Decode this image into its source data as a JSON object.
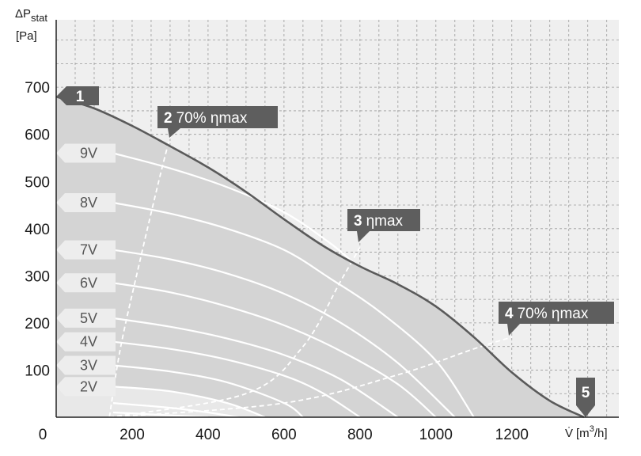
{
  "chart_data": {
    "type": "line",
    "title": "",
    "ylabel_main": "ΔP",
    "ylabel_sub": "stat",
    "ylabel_unit": "[Pa]",
    "xlabel_symbol": "V̇",
    "xlabel_unit_pre": "[m",
    "xlabel_unit_sup": "3",
    "xlabel_unit_post": "/h]",
    "xlim": [
      0,
      1400
    ],
    "ylim": [
      0,
      750
    ],
    "x_ticks": [
      "0",
      "200",
      "400",
      "600",
      "800",
      "1000",
      "1200"
    ],
    "x_tick_values": [
      0,
      200,
      400,
      600,
      800,
      1000,
      1200
    ],
    "y_ticks": [
      "100",
      "200",
      "300",
      "400",
      "500",
      "600",
      "700"
    ],
    "y_tick_values": [
      100,
      200,
      300,
      400,
      500,
      600,
      700
    ],
    "grid": true,
    "colors": {
      "region": "#d4d4d4",
      "region_light": "#e8e8e8",
      "background": "#efefef",
      "max_curve": "#5a5a5a",
      "label_box": "#5e5e5e",
      "voltage_curve": "#ffffff",
      "voltage_tag": "#ededed",
      "voltage_text": "#555555"
    },
    "max_curve": {
      "x": [
        0,
        100,
        200,
        300,
        400,
        500,
        600,
        700,
        800,
        900,
        1000,
        1100,
        1200,
        1300,
        1390
      ],
      "y": [
        680,
        655,
        618,
        575,
        530,
        478,
        420,
        365,
        320,
        282,
        235,
        170,
        95,
        35,
        0
      ]
    },
    "series": [
      {
        "name": "9V",
        "x": [
          150,
          300,
          450,
          600,
          720,
          780
        ],
        "y": [
          560,
          528,
          488,
          435,
          370,
          330
        ]
      },
      {
        "name": "8V",
        "x": [
          150,
          300,
          450,
          600,
          720,
          850,
          1000,
          1100
        ],
        "y": [
          455,
          432,
          400,
          355,
          295,
          225,
          120,
          0
        ]
      },
      {
        "name": "7V",
        "x": [
          150,
          300,
          450,
          600,
          750,
          900,
          1050
        ],
        "y": [
          355,
          335,
          305,
          262,
          200,
          115,
          0
        ]
      },
      {
        "name": "6V",
        "x": [
          150,
          300,
          450,
          600,
          750,
          900,
          1000
        ],
        "y": [
          285,
          265,
          235,
          195,
          140,
          70,
          0
        ]
      },
      {
        "name": "5V",
        "x": [
          150,
          300,
          450,
          600,
          750,
          900
        ],
        "y": [
          210,
          192,
          167,
          132,
          80,
          0
        ]
      },
      {
        "name": "4V",
        "x": [
          150,
          300,
          450,
          600,
          700,
          800
        ],
        "y": [
          160,
          145,
          122,
          88,
          52,
          0
        ]
      },
      {
        "name": "3V",
        "x": [
          150,
          300,
          450,
          600,
          650
        ],
        "y": [
          110,
          97,
          74,
          30,
          0
        ]
      },
      {
        "name": "2V",
        "x": [
          150,
          300,
          450,
          550
        ],
        "y": [
          65,
          55,
          30,
          0
        ]
      }
    ],
    "extra_curves": [
      {
        "x": [
          150,
          300,
          400,
          480
        ],
        "y": [
          30,
          20,
          10,
          0
        ]
      },
      {
        "x": [
          150,
          300,
          400
        ],
        "y": [
          10,
          4,
          0
        ]
      }
    ],
    "efficiency_lines": [
      {
        "x": [
          140,
          170,
          220,
          270,
          300
        ],
        "y": [
          0,
          150,
          330,
          500,
          595
        ]
      },
      {
        "x": [
          140,
          500,
          650,
          750,
          800
        ],
        "y": [
          0,
          50,
          150,
          290,
          360
        ]
      },
      {
        "x": [
          140,
          600,
          900,
          1100,
          1200
        ],
        "y": [
          0,
          30,
          90,
          145,
          170
        ]
      }
    ],
    "point_labels": [
      {
        "num": "1",
        "text": "",
        "x": 5,
        "y": 678
      },
      {
        "num": "2",
        "text": "70% ηmax",
        "x": 300,
        "y": 595
      },
      {
        "num": "3",
        "text": "ηmax",
        "x": 800,
        "y": 360
      },
      {
        "num": "4",
        "text": "70% ηmax",
        "x": 1200,
        "y": 170
      },
      {
        "num": "5",
        "text": "",
        "x": 1390,
        "y": 0
      }
    ]
  }
}
